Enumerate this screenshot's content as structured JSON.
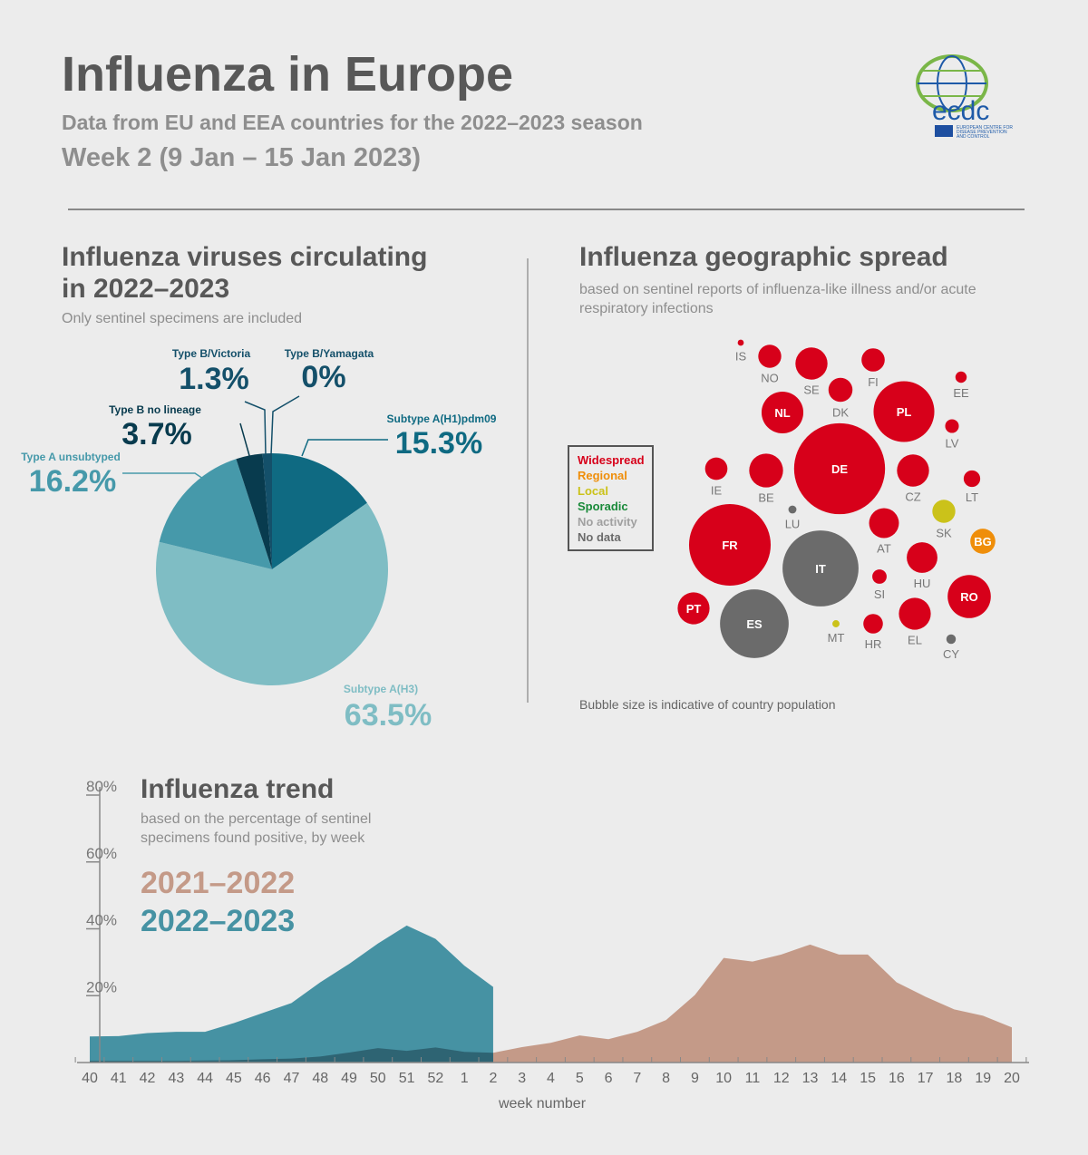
{
  "header": {
    "title": "Influenza in Europe",
    "subtitle": "Data from EU and EEA countries for the 2022–2023 season",
    "week": "Week 2 (9 Jan – 15 Jan 2023)",
    "logo": {
      "name": "ecdc",
      "tagline": [
        "EUROPEAN CENTRE FOR",
        "DISEASE PREVENTION",
        "AND CONTROL"
      ]
    }
  },
  "chart_data": [
    {
      "type": "pie",
      "title": [
        "Influenza viruses circulating",
        "in 2022–2023"
      ],
      "subtitle": "Only sentinel specimens are included",
      "categories": [
        "Subtype A(H1)pdm09",
        "Subtype A(H3)",
        "Type A unsubtyped",
        "Type B no lineage",
        "Type B/Victoria",
        "Type B/Yamagata"
      ],
      "values": [
        15.3,
        63.5,
        16.2,
        3.7,
        1.3,
        0
      ],
      "value_labels": [
        "15.3%",
        "63.5%",
        "16.2%",
        "3.7%",
        "1.3%",
        "0%"
      ],
      "colors": [
        "#0f6a82",
        "#7fbdc4",
        "#4699aa",
        "#083b4e",
        "#14506a",
        "#14506a"
      ]
    },
    {
      "type": "bubble",
      "title": "Influenza geographic spread",
      "subtitle": [
        "based on sentinel reports of influenza-like illness and/or acute",
        "respiratory infections"
      ],
      "legend": [
        {
          "name": "Widespread",
          "color": "#d7001a"
        },
        {
          "name": "Regional",
          "color": "#ef8e0a"
        },
        {
          "name": "Local",
          "color": "#cbc21a"
        },
        {
          "name": "Sporadic",
          "color": "#1a8a3a"
        },
        {
          "name": "No activity",
          "color": "#a0a0a0"
        },
        {
          "name": "No data",
          "color": "#6b6b6b"
        }
      ],
      "categories": [
        "IS",
        "NO",
        "SE",
        "FI",
        "DK",
        "EE",
        "NL",
        "PL",
        "LV",
        "DE",
        "IE",
        "BE",
        "CZ",
        "LT",
        "LU",
        "SK",
        "BG",
        "AT",
        "FR",
        "IT",
        "HU",
        "SI",
        "RO",
        "PT",
        "ES",
        "MT",
        "HR",
        "EL",
        "CY"
      ],
      "status": [
        "Widespread",
        "Widespread",
        "Widespread",
        "Widespread",
        "Widespread",
        "Widespread",
        "Widespread",
        "Widespread",
        "Widespread",
        "Widespread",
        "Widespread",
        "Widespread",
        "Widespread",
        "Widespread",
        "No data",
        "Local",
        "Regional",
        "Widespread",
        "Widespread",
        "No data",
        "Widespread",
        "Widespread",
        "Widespread",
        "Widespread",
        "No data",
        "Local",
        "Widespread",
        "Widespread",
        "No data"
      ],
      "values": [
        0.38,
        5.4,
        10.5,
        5.5,
        5.9,
        1.3,
        17.8,
        37.7,
        1.9,
        84.4,
        5.1,
        11.7,
        10.5,
        2.8,
        0.66,
        5.4,
        6.4,
        9.1,
        68,
        58.9,
        9.6,
        2.1,
        19,
        10.4,
        48.1,
        0.53,
        3.9,
        10.4,
        0.92
      ],
      "note": "Bubble size is indicative of country population"
    },
    {
      "type": "area",
      "title": "Influenza trend",
      "subtitle": [
        "based on the percentage of sentinel",
        "specimens found positive, by week"
      ],
      "categories": [
        40,
        41,
        42,
        43,
        44,
        45,
        46,
        47,
        48,
        49,
        50,
        51,
        52,
        1,
        2,
        3,
        4,
        5,
        6,
        7,
        8,
        9,
        10,
        11,
        12,
        13,
        14,
        15,
        16,
        17,
        18,
        19,
        20
      ],
      "series": [
        {
          "name": "2021–2022",
          "color": "#c49a88",
          "values": [
            0.5,
            0.5,
            0.5,
            0.5,
            0.6,
            0.7,
            1,
            1.2,
            1.8,
            3,
            4.3,
            3.5,
            4.5,
            3.2,
            2.9,
            4.6,
            5.9,
            8.1,
            7,
            9.2,
            12.7,
            20.2,
            31.3,
            30.2,
            32.3,
            35.3,
            32.3,
            32.3,
            24,
            19.7,
            15.9,
            14,
            10.5
          ]
        },
        {
          "name": "2022–2023",
          "color": "#4692a3",
          "values": [
            7.8,
            7.9,
            8.8,
            9.2,
            9.2,
            11.8,
            14.8,
            17.8,
            24,
            29.5,
            35.6,
            41,
            37,
            29,
            22.6,
            null,
            null,
            null,
            null,
            null,
            null,
            null,
            null,
            null,
            null,
            null,
            null,
            null,
            null,
            null,
            null,
            null,
            null
          ]
        }
      ],
      "ylim": [
        0,
        80
      ],
      "yticks": [
        {
          "value": 20,
          "label": "20%"
        },
        {
          "value": 40,
          "label": "40%"
        },
        {
          "value": 60,
          "label": "60%"
        },
        {
          "value": 80,
          "label": "80%"
        }
      ],
      "xlabel": "week number"
    }
  ]
}
